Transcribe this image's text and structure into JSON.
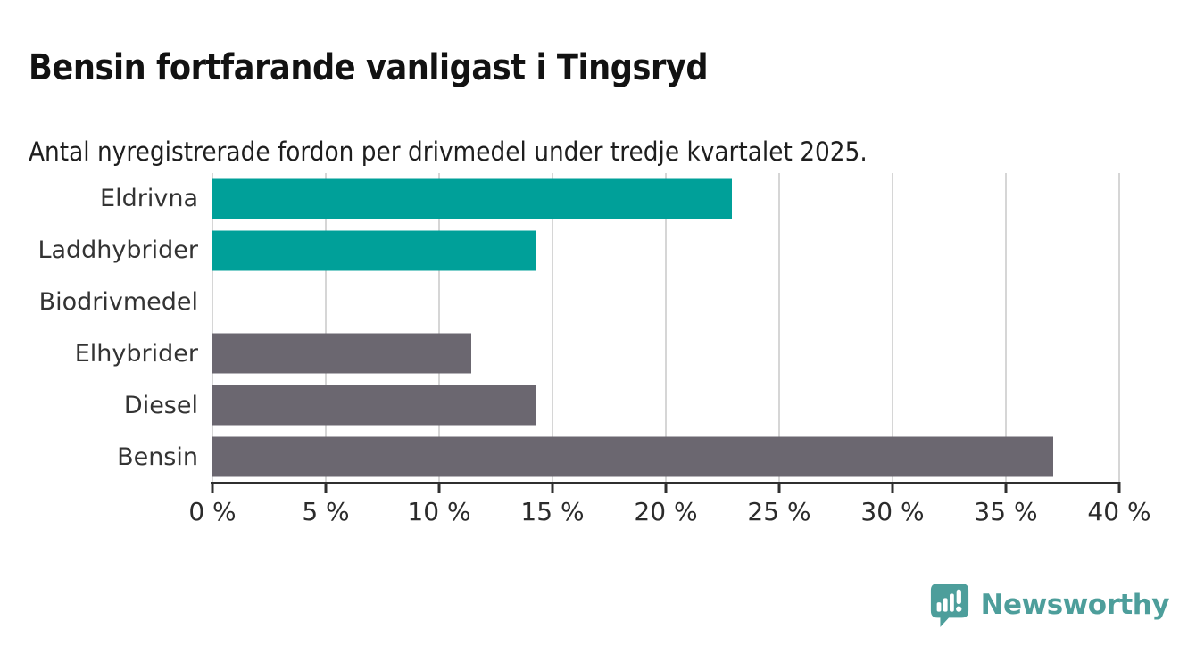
{
  "header": {
    "title": "Bensin fortfarande vanligast i Tingsryd",
    "subtitle": "Antal nyregistrerade fordon per drivmedel under tredje kvartalet 2025."
  },
  "chart_data": {
    "type": "bar",
    "orientation": "horizontal",
    "categories": [
      "Eldrivna",
      "Laddhybrider",
      "Biodrivmedel",
      "Elhybrider",
      "Diesel",
      "Bensin"
    ],
    "values": [
      22.9,
      14.3,
      0,
      11.4,
      14.3,
      37.1
    ],
    "value_unit": "%",
    "bar_colors": [
      "#00a099",
      "#00a099",
      "#6b6770",
      "#6b6770",
      "#6b6770",
      "#6b6770"
    ],
    "xlim": [
      0,
      40
    ],
    "x_ticks": [
      0,
      5,
      10,
      15,
      20,
      25,
      30,
      35,
      40
    ],
    "x_tick_labels": [
      "0 %",
      "5 %",
      "10 %",
      "15 %",
      "20 %",
      "25 %",
      "30 %",
      "35 %",
      "40 %"
    ],
    "grid": "vertical",
    "legend": "none",
    "xlabel": "",
    "ylabel": ""
  },
  "footer": {
    "brand_label": "Newsworthy"
  },
  "colors": {
    "accent_teal": "#00a099",
    "bar_gray": "#6b6770",
    "brand_teal": "#4d9e9b",
    "gridline": "#d6d6d6",
    "axis": "#2f2f2f",
    "title_text": "#121212",
    "label_text": "#333333",
    "background": "#ffffff"
  }
}
